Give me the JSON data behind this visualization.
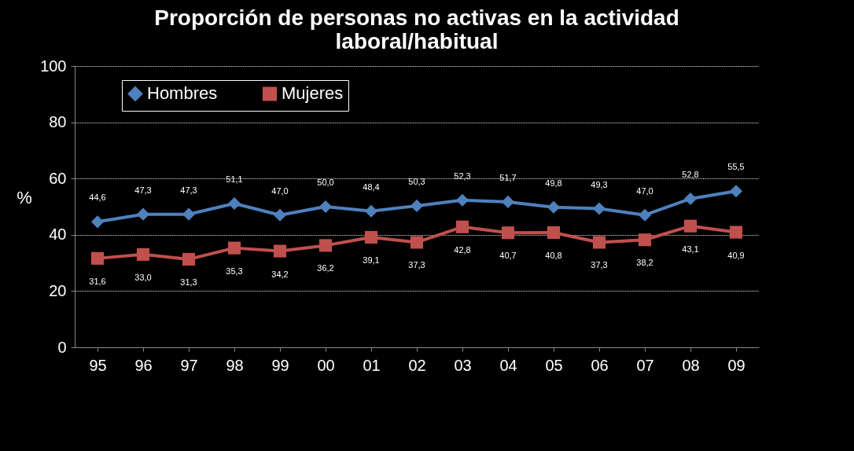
{
  "chart_data": {
    "type": "line",
    "title": "Proporción de personas no activas en la actividad laboral/habitual",
    "ylabel": "%",
    "categories": [
      "95",
      "96",
      "97",
      "98",
      "99",
      "00",
      "01",
      "02",
      "03",
      "04",
      "05",
      "06",
      "07",
      "08",
      "09"
    ],
    "series": [
      {
        "name": "Hombres",
        "color": "#4f81bd",
        "marker": "diamond",
        "values": [
          44.6,
          47.3,
          47.3,
          51.1,
          47.0,
          50.0,
          48.4,
          50.3,
          52.3,
          51.7,
          49.8,
          49.3,
          47.0,
          52.8,
          55.5
        ],
        "value_labels": [
          "44,6",
          "47,3",
          "47,3",
          "51,1",
          "47,0",
          "50,0",
          "48,4",
          "50,3",
          "52,3",
          "51,7",
          "49,8",
          "49,3",
          "47,0",
          "52,8",
          "55,5"
        ]
      },
      {
        "name": "Mujeres",
        "color": "#c0504d",
        "marker": "square",
        "values": [
          31.6,
          33.0,
          31.3,
          35.3,
          34.2,
          36.2,
          39.1,
          37.3,
          42.8,
          40.7,
          40.8,
          37.3,
          38.2,
          43.1,
          40.9
        ],
        "value_labels": [
          "31,6",
          "33,0",
          "31,3",
          "35,3",
          "34,2",
          "36,2",
          "39,1",
          "37,3",
          "42,8",
          "40,7",
          "40,8",
          "37,3",
          "38,2",
          "43,1",
          "40,9"
        ]
      }
    ],
    "ylim": [
      0,
      100
    ],
    "yticks": [
      0,
      20,
      40,
      60,
      80,
      100
    ],
    "grid": "y",
    "legend": "top"
  }
}
